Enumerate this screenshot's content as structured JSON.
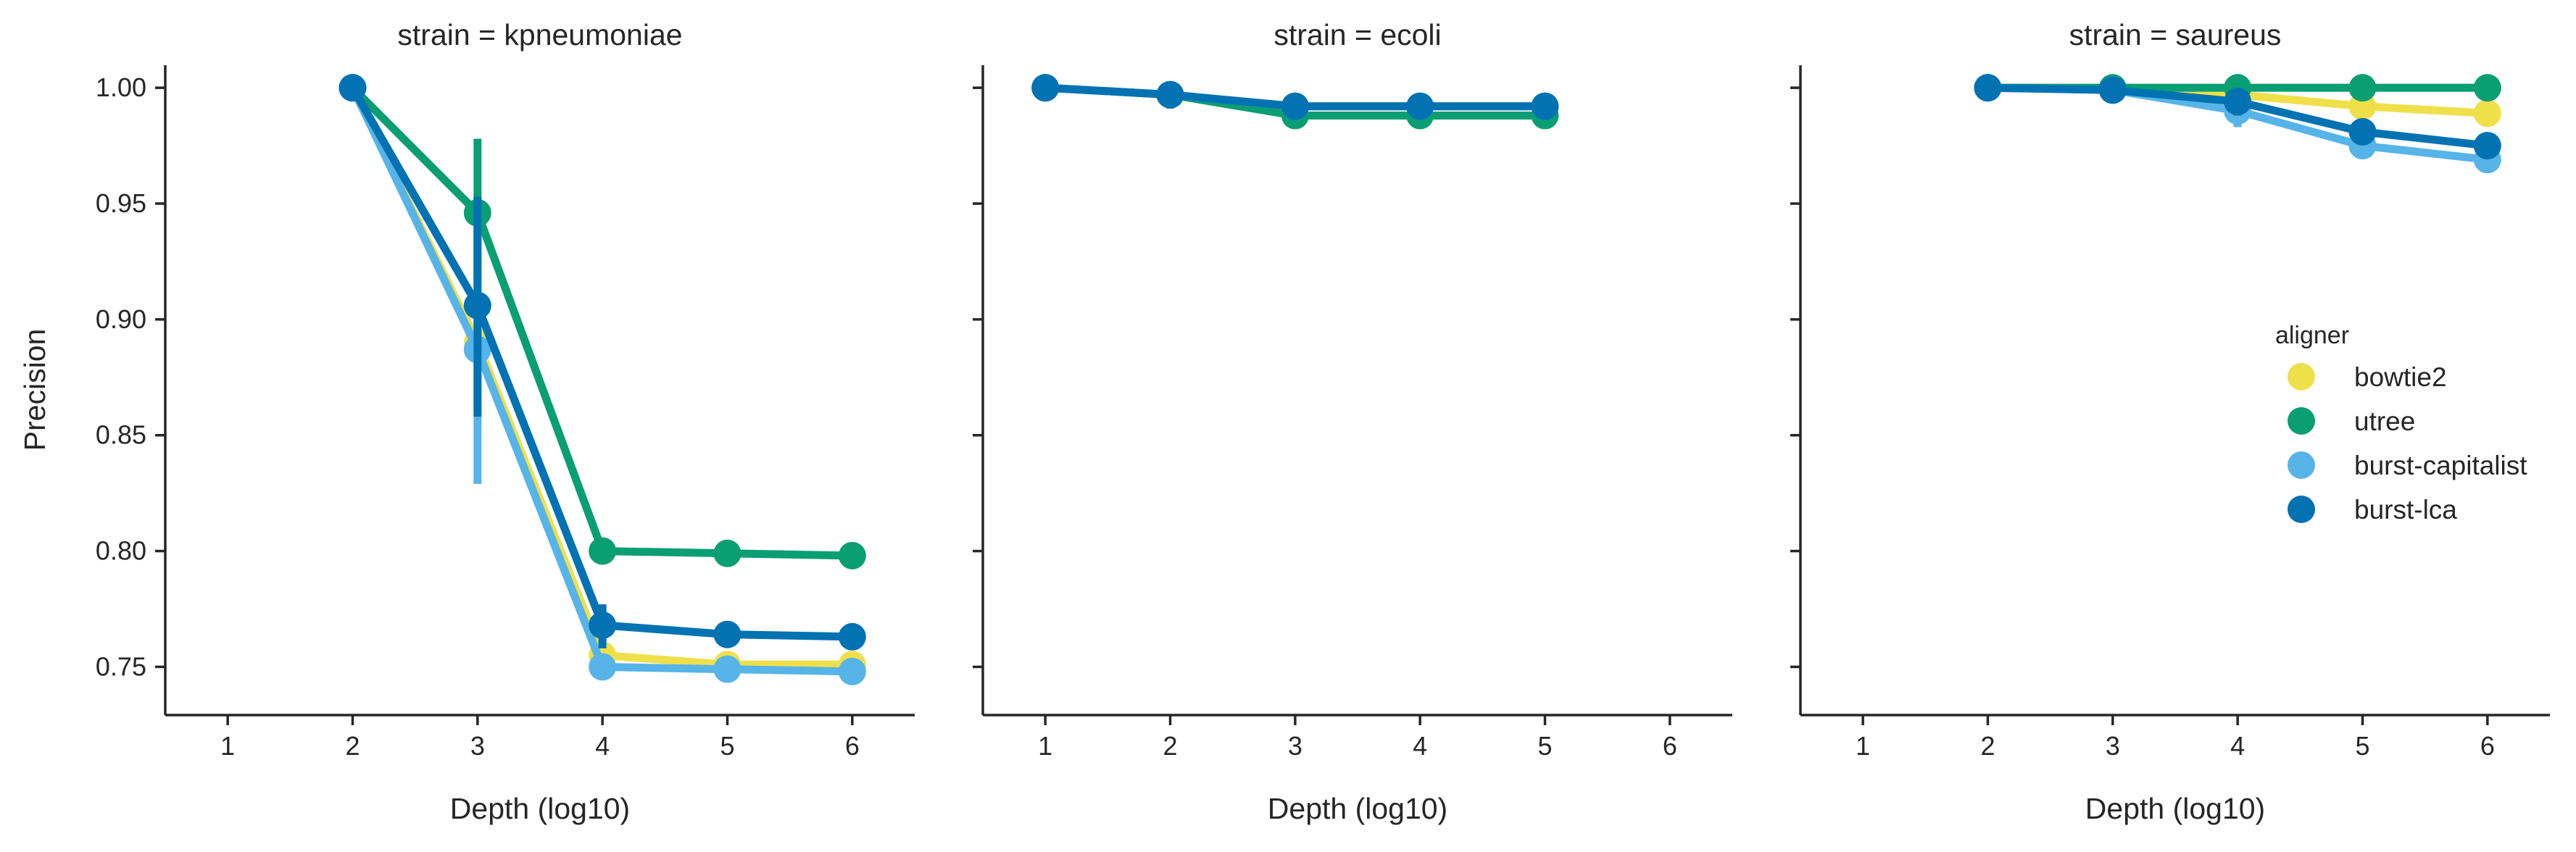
{
  "colors": {
    "bowtie2": "#EFE04A",
    "utree": "#0A9E73",
    "burst-capitalist": "#56B4E9",
    "burst-lca": "#0372B2",
    "axis": "#262626"
  },
  "chart_data": {
    "type": "line",
    "facet_titles": [
      "strain = kpneumoniae",
      "strain = ecoli",
      "strain = saureus"
    ],
    "xlabel": "Depth (log10)",
    "ylabel": "Precision",
    "x_ticks": [
      1,
      2,
      3,
      4,
      5,
      6
    ],
    "xlim": [
      0.5,
      6.5
    ],
    "y_ticks": [
      0.75,
      0.8,
      0.85,
      0.9,
      0.95,
      1.0
    ],
    "y_tick_labels": [
      "0.75",
      "0.80",
      "0.85",
      "0.90",
      "0.95",
      "1.00"
    ],
    "ylim": [
      0.7295,
      1.0185
    ],
    "legend": {
      "title": "aligner",
      "placement": "right",
      "entries": [
        "bowtie2",
        "utree",
        "burst-capitalist",
        "burst-lca"
      ]
    },
    "facets": [
      {
        "strain": "kpneumoniae",
        "series": [
          {
            "name": "bowtie2",
            "x": [
              2,
              3,
              4,
              5,
              6
            ],
            "y": [
              1.0,
              0.89,
              0.755,
              0.751,
              0.751
            ],
            "err": [
              null,
              [
                0.86,
                0.92
              ],
              null,
              null,
              null
            ]
          },
          {
            "name": "utree",
            "x": [
              2,
              3,
              4,
              5,
              6
            ],
            "y": [
              1.0,
              0.946,
              0.8,
              0.799,
              0.798
            ],
            "err": [
              null,
              [
                0.915,
                0.978
              ],
              null,
              null,
              null
            ]
          },
          {
            "name": "burst-capitalist",
            "x": [
              2,
              3,
              4,
              5,
              6
            ],
            "y": [
              1.0,
              0.887,
              0.75,
              0.749,
              0.748
            ],
            "err": [
              null,
              [
                0.829,
                0.948
              ],
              null,
              null,
              null
            ]
          },
          {
            "name": "burst-lca",
            "x": [
              2,
              3,
              4,
              5,
              6
            ],
            "y": [
              1.0,
              0.906,
              0.768,
              0.764,
              0.763
            ],
            "err": [
              null,
              [
                0.858,
                0.953
              ],
              [
                0.758,
                0.777
              ],
              null,
              null
            ]
          }
        ]
      },
      {
        "strain": "ecoli",
        "series": [
          {
            "name": "bowtie2",
            "x": [
              1,
              2,
              3,
              4,
              5
            ],
            "y": [
              1.0,
              0.997,
              0.992,
              0.992,
              0.992
            ],
            "err": [
              null,
              null,
              null,
              null,
              null
            ]
          },
          {
            "name": "utree",
            "x": [
              1,
              2,
              3,
              4,
              5
            ],
            "y": [
              1.0,
              0.997,
              0.988,
              0.988,
              0.988
            ],
            "err": [
              null,
              null,
              null,
              null,
              null
            ]
          },
          {
            "name": "burst-capitalist",
            "x": [
              1,
              2,
              3,
              4,
              5
            ],
            "y": [
              1.0,
              0.997,
              0.992,
              0.992,
              0.992
            ],
            "err": [
              null,
              null,
              null,
              null,
              null
            ]
          },
          {
            "name": "burst-lca",
            "x": [
              1,
              2,
              3,
              4,
              5
            ],
            "y": [
              1.0,
              0.997,
              0.992,
              0.992,
              0.992
            ],
            "err": [
              null,
              [
                0.991,
                1.0
              ],
              null,
              null,
              null
            ]
          }
        ]
      },
      {
        "strain": "saureus",
        "series": [
          {
            "name": "bowtie2",
            "x": [
              2,
              3,
              4,
              5,
              6
            ],
            "y": [
              1.0,
              1.0,
              0.997,
              0.992,
              0.989
            ],
            "err": [
              null,
              null,
              null,
              null,
              null
            ]
          },
          {
            "name": "utree",
            "x": [
              2,
              3,
              4,
              5,
              6
            ],
            "y": [
              1.0,
              1.0,
              1.0,
              1.0,
              1.0
            ],
            "err": [
              null,
              null,
              null,
              null,
              null
            ]
          },
          {
            "name": "burst-capitalist",
            "x": [
              2,
              3,
              4,
              5,
              6
            ],
            "y": [
              1.0,
              0.999,
              0.99,
              0.975,
              0.969
            ],
            "err": [
              null,
              null,
              [
                0.983,
                0.997
              ],
              null,
              null
            ]
          },
          {
            "name": "burst-lca",
            "x": [
              2,
              3,
              4,
              5,
              6
            ],
            "y": [
              1.0,
              0.999,
              0.994,
              0.981,
              0.975
            ],
            "err": [
              null,
              null,
              [
                0.988,
                1.0
              ],
              null,
              null
            ]
          }
        ]
      }
    ]
  }
}
